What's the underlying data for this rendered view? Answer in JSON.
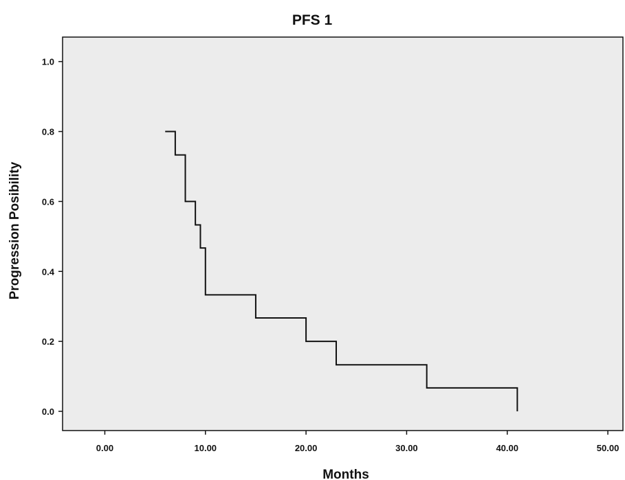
{
  "chart_data": {
    "type": "line",
    "step": true,
    "title": "PFS 1",
    "xlabel": "Months",
    "ylabel": "Progression Posibility",
    "xlim": [
      -4.2,
      51.5
    ],
    "ylim": [
      -0.055,
      1.07
    ],
    "xticks": [
      0,
      10,
      20,
      30,
      40,
      50
    ],
    "xtick_labels": [
      "0.00",
      "10.00",
      "20.00",
      "30.00",
      "40.00",
      "50.00"
    ],
    "yticks": [
      0.0,
      0.2,
      0.4,
      0.6,
      0.8,
      1.0
    ],
    "ytick_labels": [
      "0.0",
      "0.2",
      "0.4",
      "0.6",
      "0.8",
      "1.0"
    ],
    "grid": false,
    "series": [
      {
        "x": [
          6,
          7,
          8,
          9,
          9.5,
          10,
          15,
          20,
          23,
          32,
          41
        ],
        "y": [
          0.8,
          0.733,
          0.6,
          0.533,
          0.467,
          0.333,
          0.267,
          0.2,
          0.133,
          0.067,
          0.0
        ]
      }
    ],
    "colors": {
      "plot_background": "#ececec",
      "line": "#111111",
      "axis": "#111111"
    }
  }
}
